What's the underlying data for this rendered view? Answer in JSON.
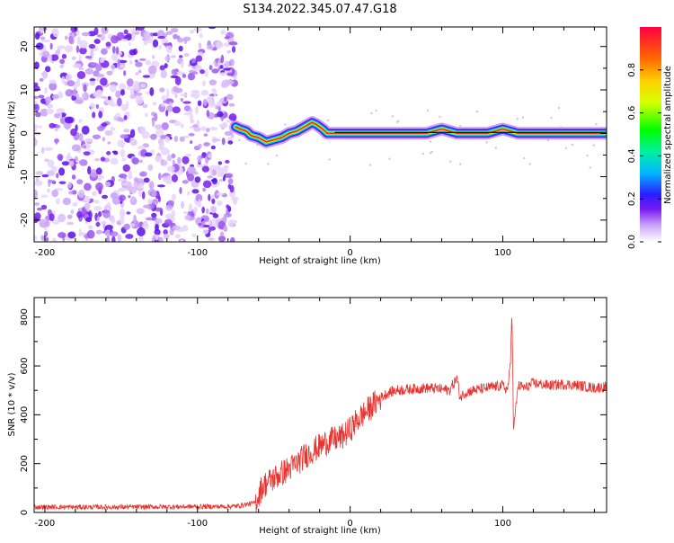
{
  "title": "S134.2022.345.07.47.G18",
  "chart_data": [
    {
      "type": "heatmap",
      "xlabel": "Height of straight line (km)",
      "ylabel": "Frequency (Hz)",
      "xlim": [
        -207,
        168
      ],
      "ylim": [
        -25,
        24.5
      ],
      "x_ticks": [
        -200,
        -100,
        0,
        100
      ],
      "y_ticks": [
        -20,
        -10,
        0,
        10,
        20
      ],
      "noise_region_x": [
        -207,
        -75
      ],
      "ridge": {
        "x": [
          -75,
          -72,
          -68,
          -65,
          -60,
          -55,
          -50,
          -45,
          -40,
          -35,
          -30,
          -25,
          -22,
          -18,
          -15,
          -10,
          0,
          10,
          20,
          30,
          40,
          50,
          55,
          60,
          65,
          70,
          80,
          90,
          95,
          100,
          105,
          110,
          120,
          140,
          168
        ],
        "y": [
          1.5,
          1,
          0.5,
          -0.5,
          -1,
          -2,
          -1.5,
          -1,
          0,
          0.5,
          1.5,
          2.5,
          2,
          1,
          0,
          0,
          0,
          0,
          0,
          0,
          0,
          0,
          0.5,
          1,
          0.5,
          0,
          0,
          0,
          0.5,
          1,
          0.5,
          0,
          0,
          0,
          0
        ]
      },
      "colorbar": {
        "label": "Normalized spectral amplitude",
        "range": [
          0,
          1
        ],
        "ticks": [
          0.0,
          0.2,
          0.4,
          0.6,
          0.8
        ],
        "tick_labels": [
          "0.0",
          "0.2",
          "0.4",
          "0.6",
          "0.8"
        ]
      }
    },
    {
      "type": "line",
      "xlabel": "Height of straight line (km)",
      "ylabel": "SNR (10 * v/v)",
      "xlim": [
        -207,
        168
      ],
      "ylim": [
        0,
        880
      ],
      "x_ticks": [
        -200,
        -100,
        0,
        100
      ],
      "y_ticks": [
        0,
        200,
        400,
        600,
        800
      ],
      "series": [
        {
          "color": "#e8332e",
          "x": [
            -207,
            -180,
            -150,
            -120,
            -90,
            -75,
            -62,
            -58,
            -55,
            -50,
            -45,
            -40,
            -35,
            -30,
            -25,
            -20,
            -15,
            -10,
            -5,
            0,
            5,
            10,
            15,
            20,
            25,
            30,
            40,
            50,
            60,
            65,
            70,
            72,
            75,
            80,
            90,
            100,
            103,
            105,
            106,
            107,
            110,
            115,
            120,
            130,
            140,
            150,
            160,
            168
          ],
          "y": [
            22,
            22,
            22,
            23,
            24,
            25,
            40,
            100,
            120,
            140,
            160,
            180,
            200,
            230,
            250,
            270,
            290,
            300,
            310,
            340,
            380,
            410,
            440,
            470,
            490,
            500,
            505,
            510,
            505,
            500,
            550,
            470,
            490,
            500,
            510,
            520,
            500,
            600,
            850,
            330,
            520,
            510,
            530,
            520,
            525,
            520,
            510,
            515
          ]
        }
      ]
    }
  ]
}
